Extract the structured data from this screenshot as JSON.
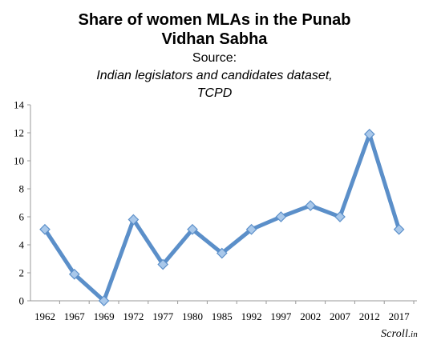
{
  "header": {
    "title_line1": "Share of women MLAs in the Punab",
    "title_line2": "Vidhan Sabha",
    "source_prefix": "Source: ",
    "source_line1": "Indian legislators and candidates dataset,",
    "source_line2": "TCPD"
  },
  "brand": {
    "name": "Scroll",
    "suffix": ".in"
  },
  "chart_data": {
    "type": "line",
    "title": "Share of women MLAs in the Punab Vidhan Sabha",
    "subtitle": "Source: Indian legislators and candidates dataset, TCPD",
    "xlabel": "",
    "ylabel": "",
    "categories": [
      "1962",
      "1967",
      "1969",
      "1972",
      "1977",
      "1980",
      "1985",
      "1992",
      "1997",
      "2002",
      "2007",
      "2012",
      "2017"
    ],
    "series": [
      {
        "values": [
          5.1,
          1.9,
          0.0,
          5.8,
          2.6,
          5.1,
          3.4,
          5.1,
          6.0,
          6.8,
          6.0,
          11.9,
          5.1
        ]
      }
    ],
    "ylim": [
      0,
      14
    ],
    "yticks": [
      "0",
      "2",
      "4",
      "6",
      "8",
      "10",
      "12",
      "14"
    ],
    "grid": false,
    "legend": "none",
    "colors": {
      "line": "#5b8fc9",
      "marker_fill": "#a9c8ea",
      "marker_stroke": "#5b8fc9",
      "axis": "#999999"
    }
  }
}
